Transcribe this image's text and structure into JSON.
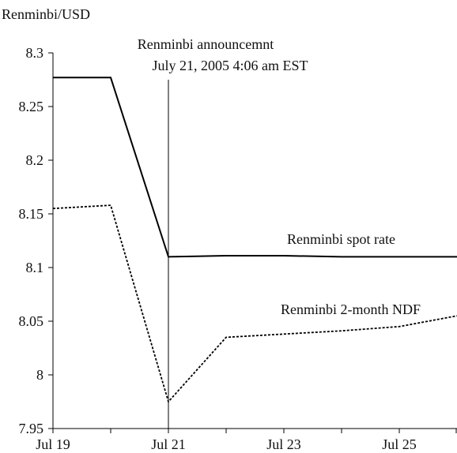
{
  "chart_data": {
    "type": "line",
    "title": "",
    "ylabel": "Renminbi/USD",
    "xlabel": "",
    "xlim": [
      0,
      7
    ],
    "ylim": [
      7.95,
      8.3
    ],
    "grid": false,
    "legend": "none",
    "x_ticks": [
      {
        "x": 0,
        "label": "Jul 19"
      },
      {
        "x": 1,
        "label": ""
      },
      {
        "x": 2,
        "label": "Jul 21"
      },
      {
        "x": 3,
        "label": ""
      },
      {
        "x": 4,
        "label": "Jul 23"
      },
      {
        "x": 5,
        "label": ""
      },
      {
        "x": 6,
        "label": "Jul 25"
      },
      {
        "x": 7,
        "label": ""
      }
    ],
    "y_ticks": [
      {
        "y": 7.95,
        "label": "7.95"
      },
      {
        "y": 8.0,
        "label": "8"
      },
      {
        "y": 8.05,
        "label": "8.05"
      },
      {
        "y": 8.1,
        "label": "8.1"
      },
      {
        "y": 8.15,
        "label": "8.15"
      },
      {
        "y": 8.2,
        "label": "8.2"
      },
      {
        "y": 8.25,
        "label": "8.25"
      },
      {
        "y": 8.3,
        "label": "8.3"
      }
    ],
    "series": [
      {
        "name": "Renminbi spot rate",
        "style": "solid",
        "color": "#000000",
        "points": [
          [
            0,
            8.277
          ],
          [
            1,
            8.277
          ],
          [
            2,
            8.11
          ],
          [
            3,
            8.111
          ],
          [
            4,
            8.111
          ],
          [
            5,
            8.11
          ],
          [
            6,
            8.11
          ],
          [
            7,
            8.11
          ]
        ]
      },
      {
        "name": "Renminbi 2-month NDF",
        "style": "dotted",
        "color": "#000000",
        "points": [
          [
            0,
            8.155
          ],
          [
            1,
            8.158
          ],
          [
            2,
            7.975
          ],
          [
            3,
            8.035
          ],
          [
            4,
            8.038
          ],
          [
            5,
            8.041
          ],
          [
            6,
            8.045
          ],
          [
            7,
            8.055
          ]
        ]
      }
    ],
    "event": {
      "x": 2,
      "line1": "Renminbi announcemnt",
      "line2": "July 21, 2005 4:06 am EST"
    },
    "series_labels": {
      "spot": "Renminbi spot rate",
      "ndf": "Renminbi 2-month NDF"
    }
  }
}
